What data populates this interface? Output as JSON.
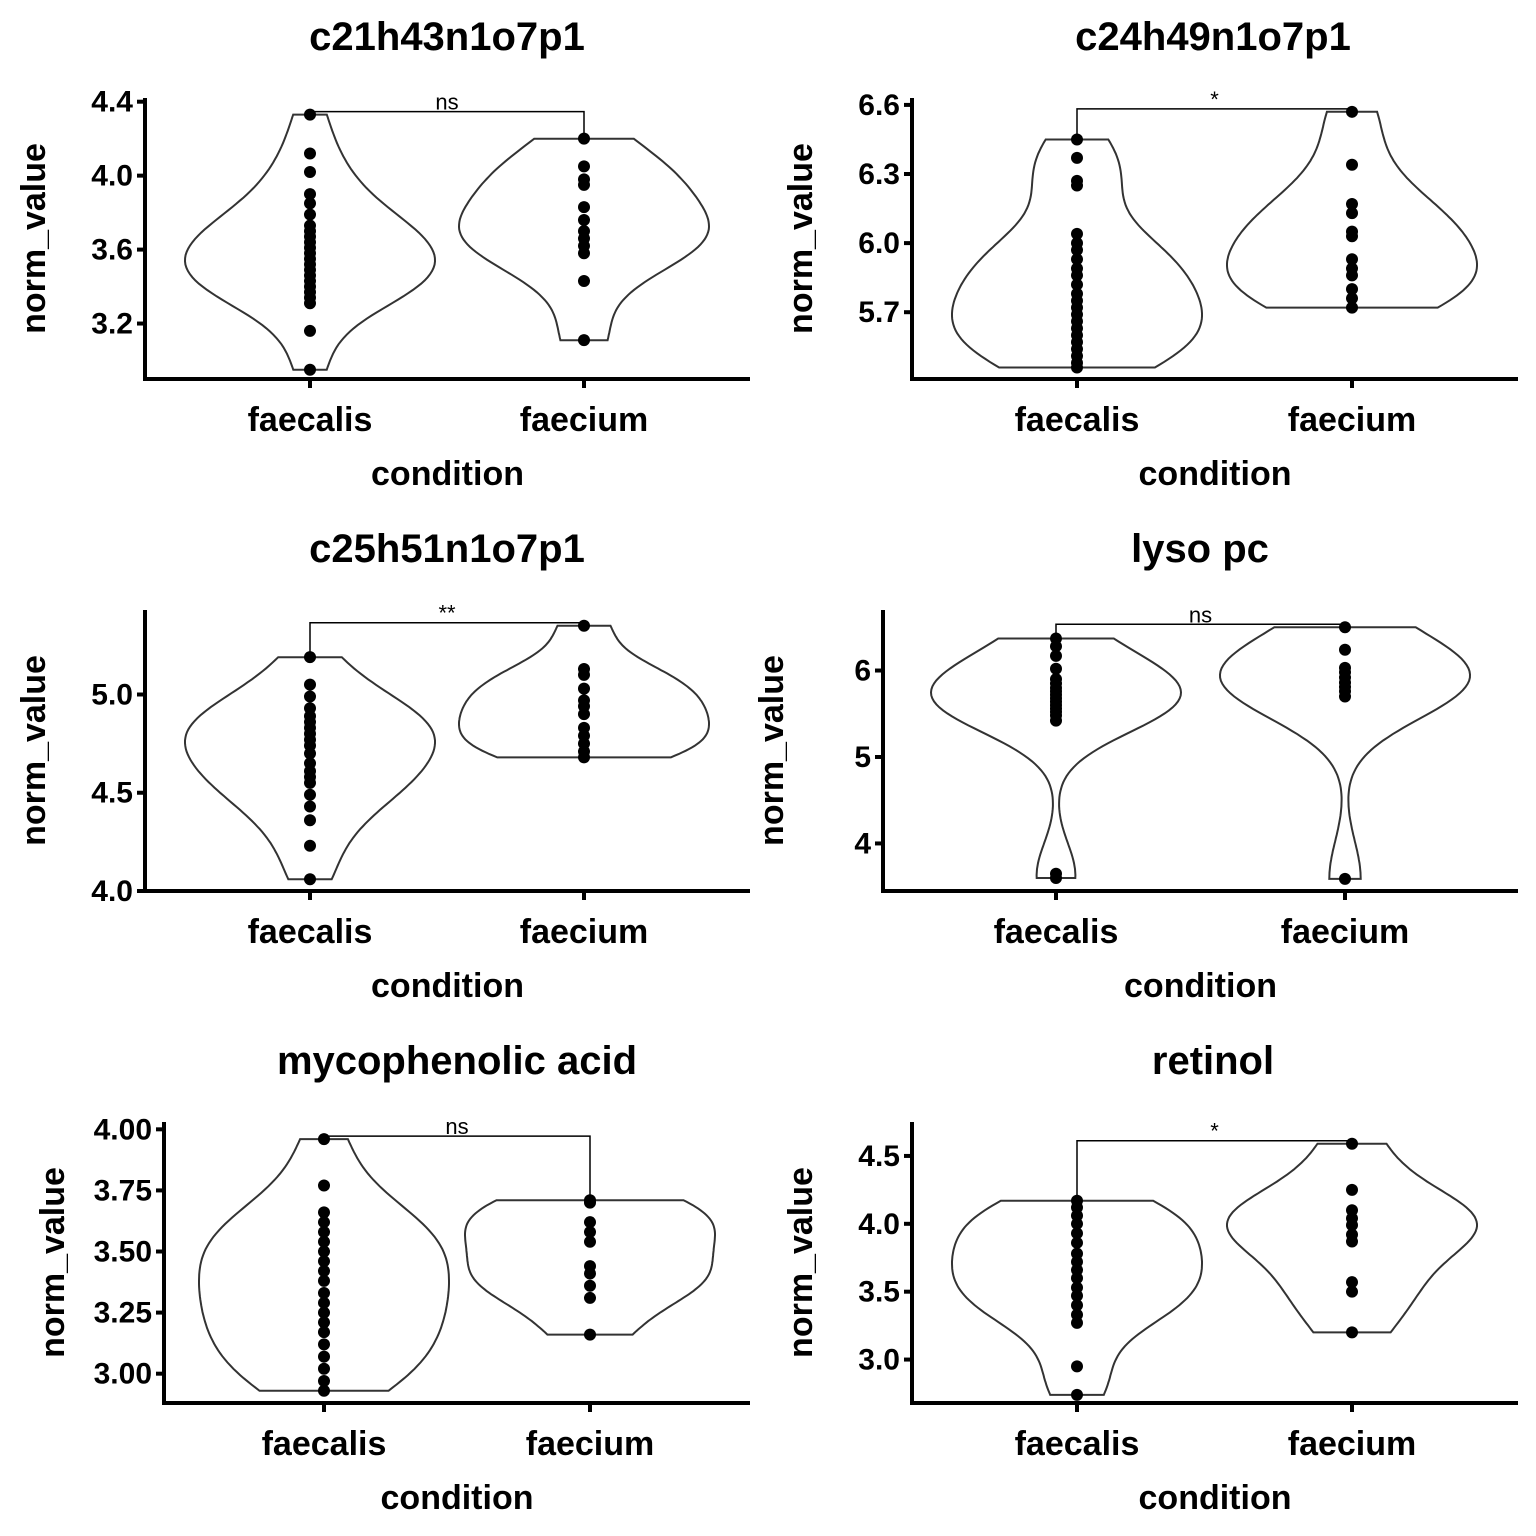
{
  "chart_data": [
    {
      "type": "violin",
      "title": "c21h43n1o7p1",
      "xlabel": "condition",
      "ylabel": "norm_value",
      "categories": [
        "faecalis",
        "faecium"
      ],
      "ylim": [
        2.9,
        4.42
      ],
      "yticks": [
        3.2,
        3.6,
        4.0,
        4.4
      ],
      "tick_decimals": 1,
      "significance": "ns",
      "series": [
        {
          "category": "faecalis",
          "values": [
            2.95,
            3.16,
            3.31,
            3.34,
            3.37,
            3.4,
            3.43,
            3.46,
            3.49,
            3.52,
            3.55,
            3.58,
            3.61,
            3.64,
            3.67,
            3.7,
            3.73,
            3.79,
            3.85,
            3.9,
            4.02,
            4.12,
            4.33
          ]
        },
        {
          "category": "faecium",
          "values": [
            3.11,
            3.43,
            3.58,
            3.62,
            3.66,
            3.7,
            3.76,
            3.83,
            3.95,
            3.98,
            4.05,
            4.2
          ]
        }
      ]
    },
    {
      "type": "violin",
      "title": "c24h49n1o7p1",
      "xlabel": "condition",
      "ylabel": "norm_value",
      "categories": [
        "faecalis",
        "faecium"
      ],
      "ylim": [
        5.41,
        6.63
      ],
      "yticks": [
        5.7,
        6.0,
        6.3,
        6.6
      ],
      "tick_decimals": 1,
      "significance": "*",
      "series": [
        {
          "category": "faecalis",
          "values": [
            5.46,
            5.48,
            5.51,
            5.54,
            5.57,
            5.6,
            5.63,
            5.66,
            5.69,
            5.72,
            5.75,
            5.78,
            5.82,
            5.86,
            5.89,
            5.93,
            5.97,
            6.0,
            6.04,
            6.25,
            6.27,
            6.37,
            6.45
          ]
        },
        {
          "category": "faecium",
          "values": [
            5.72,
            5.76,
            5.8,
            5.86,
            5.89,
            5.93,
            6.03,
            6.05,
            6.13,
            6.17,
            6.34,
            6.57
          ]
        }
      ]
    },
    {
      "type": "violin",
      "title": "c25h51n1o7p1",
      "xlabel": "condition",
      "ylabel": "norm_value",
      "categories": [
        "faecalis",
        "faecium"
      ],
      "ylim": [
        4.0,
        5.43
      ],
      "yticks": [
        4.0,
        4.5,
        5.0
      ],
      "tick_decimals": 1,
      "significance": "**",
      "series": [
        {
          "category": "faecalis",
          "values": [
            4.06,
            4.23,
            4.36,
            4.43,
            4.49,
            4.55,
            4.58,
            4.61,
            4.65,
            4.7,
            4.74,
            4.77,
            4.8,
            4.83,
            4.86,
            4.89,
            4.93,
            4.99,
            5.05,
            5.19
          ]
        },
        {
          "category": "faecium",
          "values": [
            4.68,
            4.71,
            4.75,
            4.79,
            4.83,
            4.9,
            4.94,
            4.97,
            5.03,
            5.1,
            5.13,
            5.35
          ]
        }
      ]
    },
    {
      "type": "violin",
      "title": "lyso pc",
      "xlabel": "condition",
      "ylabel": "norm_value",
      "categories": [
        "faecalis",
        "faecium"
      ],
      "ylim": [
        3.45,
        6.7
      ],
      "yticks": [
        4,
        5,
        6
      ],
      "tick_decimals": 0,
      "significance": "ns",
      "series": [
        {
          "category": "faecalis",
          "values": [
            3.6,
            3.65,
            5.42,
            5.48,
            5.52,
            5.56,
            5.6,
            5.64,
            5.68,
            5.72,
            5.76,
            5.8,
            5.85,
            5.9,
            6.02,
            6.17,
            6.28,
            6.37
          ]
        },
        {
          "category": "faecium",
          "values": [
            3.59,
            5.7,
            5.76,
            5.81,
            5.86,
            5.92,
            5.98,
            6.03,
            6.24,
            6.5
          ]
        }
      ]
    },
    {
      "type": "violin",
      "title": "mycophenolic acid",
      "xlabel": "condition",
      "ylabel": "norm_value",
      "categories": [
        "faecalis",
        "faecium"
      ],
      "ylim": [
        2.88,
        4.03
      ],
      "yticks": [
        3.0,
        3.25,
        3.5,
        3.75,
        4.0
      ],
      "tick_decimals": 2,
      "significance": "ns",
      "series": [
        {
          "category": "faecalis",
          "values": [
            2.93,
            2.97,
            3.02,
            3.07,
            3.12,
            3.17,
            3.21,
            3.25,
            3.29,
            3.33,
            3.38,
            3.42,
            3.46,
            3.5,
            3.54,
            3.58,
            3.62,
            3.66,
            3.77,
            3.96
          ]
        },
        {
          "category": "faecium",
          "values": [
            3.16,
            3.31,
            3.36,
            3.41,
            3.44,
            3.54,
            3.58,
            3.62,
            3.7,
            3.71
          ]
        }
      ]
    },
    {
      "type": "violin",
      "title": "retinol",
      "xlabel": "condition",
      "ylabel": "norm_value",
      "categories": [
        "faecalis",
        "faecium"
      ],
      "ylim": [
        2.68,
        4.75
      ],
      "yticks": [
        3.0,
        3.5,
        4.0,
        4.5
      ],
      "tick_decimals": 1,
      "significance": "*",
      "series": [
        {
          "category": "faecalis",
          "values": [
            2.74,
            2.95,
            3.27,
            3.33,
            3.4,
            3.47,
            3.53,
            3.6,
            3.66,
            3.72,
            3.78,
            3.86,
            3.93,
            4.0,
            4.06,
            4.12,
            4.17
          ]
        },
        {
          "category": "faecium",
          "values": [
            3.2,
            3.5,
            3.57,
            3.87,
            3.92,
            3.99,
            4.04,
            4.1,
            4.25,
            4.59
          ]
        }
      ]
    }
  ]
}
